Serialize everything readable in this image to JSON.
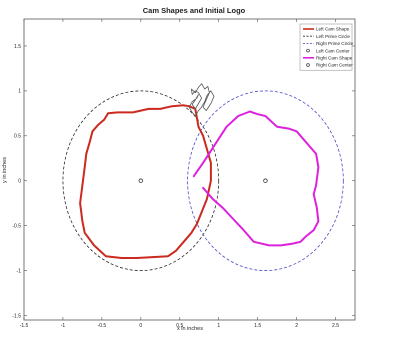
{
  "colors": {
    "left_cam": "#cc2a1e",
    "right_cam": "#dd22dd",
    "left_prime": "#2a2a2a",
    "right_prime": "#4a4ac8",
    "center_marker": "#333333",
    "logo": "#555555",
    "axes": "#555555"
  },
  "chart_data": {
    "type": "line",
    "title": "Cam Shapes and Initial Logo",
    "xlabel": "x in inches",
    "ylabel": "y in inches",
    "xlim": [
      -1.5,
      2.75
    ],
    "ylim": [
      -1.55,
      1.8
    ],
    "grid": false,
    "legend_position": "top-right",
    "x_ticks": [
      -1.5,
      -1,
      -0.5,
      0,
      0.5,
      1,
      1.5,
      2,
      2.5
    ],
    "x_tick_labels": [
      "-1.5",
      "-1",
      "-0.5",
      "0",
      "0.5",
      "1",
      "1.5",
      "2",
      "2.5"
    ],
    "y_ticks": [
      -1.5,
      -1,
      -0.5,
      0,
      0.5,
      1,
      1.5
    ],
    "y_tick_labels": [
      "-1.5",
      "-1",
      "-0.5",
      "0",
      "0.5",
      "1",
      "1.5"
    ],
    "legend": [
      {
        "label": "Left Cam Shape",
        "style": "solid-thick",
        "color": "#cc2a1e"
      },
      {
        "label": "Left Prime Circle",
        "style": "dashed",
        "color": "#2a2a2a"
      },
      {
        "label": "Right Prime Circle",
        "style": "dashed",
        "color": "#4a4ac8"
      },
      {
        "label": "Left Cam Center",
        "style": "marker",
        "color": "#333333"
      },
      {
        "label": "Right Cam Shape",
        "style": "solid-thick",
        "color": "#dd22dd"
      },
      {
        "label": "Right Cam Center",
        "style": "marker",
        "color": "#333333"
      }
    ],
    "prime_circles": [
      {
        "name": "Left Prime Circle",
        "center": [
          0,
          0
        ],
        "radius": 1.0
      },
      {
        "name": "Right Prime Circle",
        "center": [
          1.6,
          0
        ],
        "radius": 1.0
      }
    ],
    "centers": [
      {
        "name": "Left Cam Center",
        "x": 0,
        "y": 0
      },
      {
        "name": "Right Cam Center",
        "x": 1.6,
        "y": 0
      }
    ],
    "series": [
      {
        "name": "Left Cam Shape",
        "x": [
          -0.42,
          -0.3,
          -0.1,
          0.1,
          0.25,
          0.4,
          0.55,
          0.62,
          0.7,
          0.72,
          0.74,
          0.8,
          0.85,
          0.9,
          0.9,
          0.85,
          0.78,
          0.72,
          0.65,
          0.55,
          0.45,
          0.35,
          0.15,
          -0.05,
          -0.25,
          -0.45,
          -0.6,
          -0.72,
          -0.75,
          -0.78,
          -0.75,
          -0.72,
          -0.7,
          -0.65,
          -0.62,
          -0.55,
          -0.47,
          -0.42
        ],
        "y": [
          0.75,
          0.76,
          0.76,
          0.8,
          0.8,
          0.83,
          0.84,
          0.83,
          0.8,
          0.7,
          0.6,
          0.5,
          0.35,
          0.2,
          0.0,
          -0.2,
          -0.35,
          -0.48,
          -0.58,
          -0.68,
          -0.78,
          -0.84,
          -0.85,
          -0.86,
          -0.86,
          -0.84,
          -0.72,
          -0.58,
          -0.45,
          -0.25,
          -0.05,
          0.15,
          0.3,
          0.45,
          0.55,
          0.62,
          0.68,
          0.75
        ]
      },
      {
        "name": "Right Cam Shape",
        "x": [
          0.68,
          0.8,
          0.95,
          1.1,
          1.25,
          1.4,
          1.5,
          1.6,
          1.75,
          1.9,
          2.0,
          2.1,
          2.18,
          2.25,
          2.28,
          2.25,
          2.22,
          2.26,
          2.28,
          2.22,
          2.12,
          2.05,
          1.95,
          1.8,
          1.65,
          1.45,
          1.32,
          1.18,
          1.05,
          0.92,
          0.8
        ],
        "y": [
          0.05,
          0.2,
          0.4,
          0.6,
          0.72,
          0.77,
          0.74,
          0.72,
          0.6,
          0.58,
          0.55,
          0.45,
          0.37,
          0.3,
          0.15,
          -0.05,
          -0.15,
          -0.3,
          -0.45,
          -0.55,
          -0.62,
          -0.68,
          -0.7,
          -0.72,
          -0.72,
          -0.68,
          -0.55,
          -0.42,
          -0.3,
          -0.2,
          -0.08
        ]
      },
      {
        "name": "Initial Logo",
        "x": [
          0.65,
          0.7,
          0.74,
          0.78,
          0.82,
          0.86,
          0.88,
          0.84,
          0.8,
          0.84,
          0.9,
          0.94,
          0.9,
          0.85,
          0.82,
          0.78,
          0.74,
          0.7,
          0.66,
          0.62,
          0.66,
          0.72,
          0.74,
          0.7,
          0.66,
          0.7,
          0.74,
          0.78,
          0.74,
          0.7,
          0.66,
          0.65
        ],
        "y": [
          1.02,
          0.98,
          1.04,
          1.08,
          1.02,
          1.05,
          0.98,
          0.9,
          0.82,
          0.78,
          0.86,
          0.94,
          1.0,
          0.95,
          0.88,
          0.82,
          0.78,
          0.72,
          0.76,
          0.82,
          0.88,
          0.92,
          0.96,
          0.9,
          0.85,
          0.8,
          0.86,
          0.92,
          0.98,
          1.0,
          0.96,
          1.02
        ]
      }
    ]
  }
}
